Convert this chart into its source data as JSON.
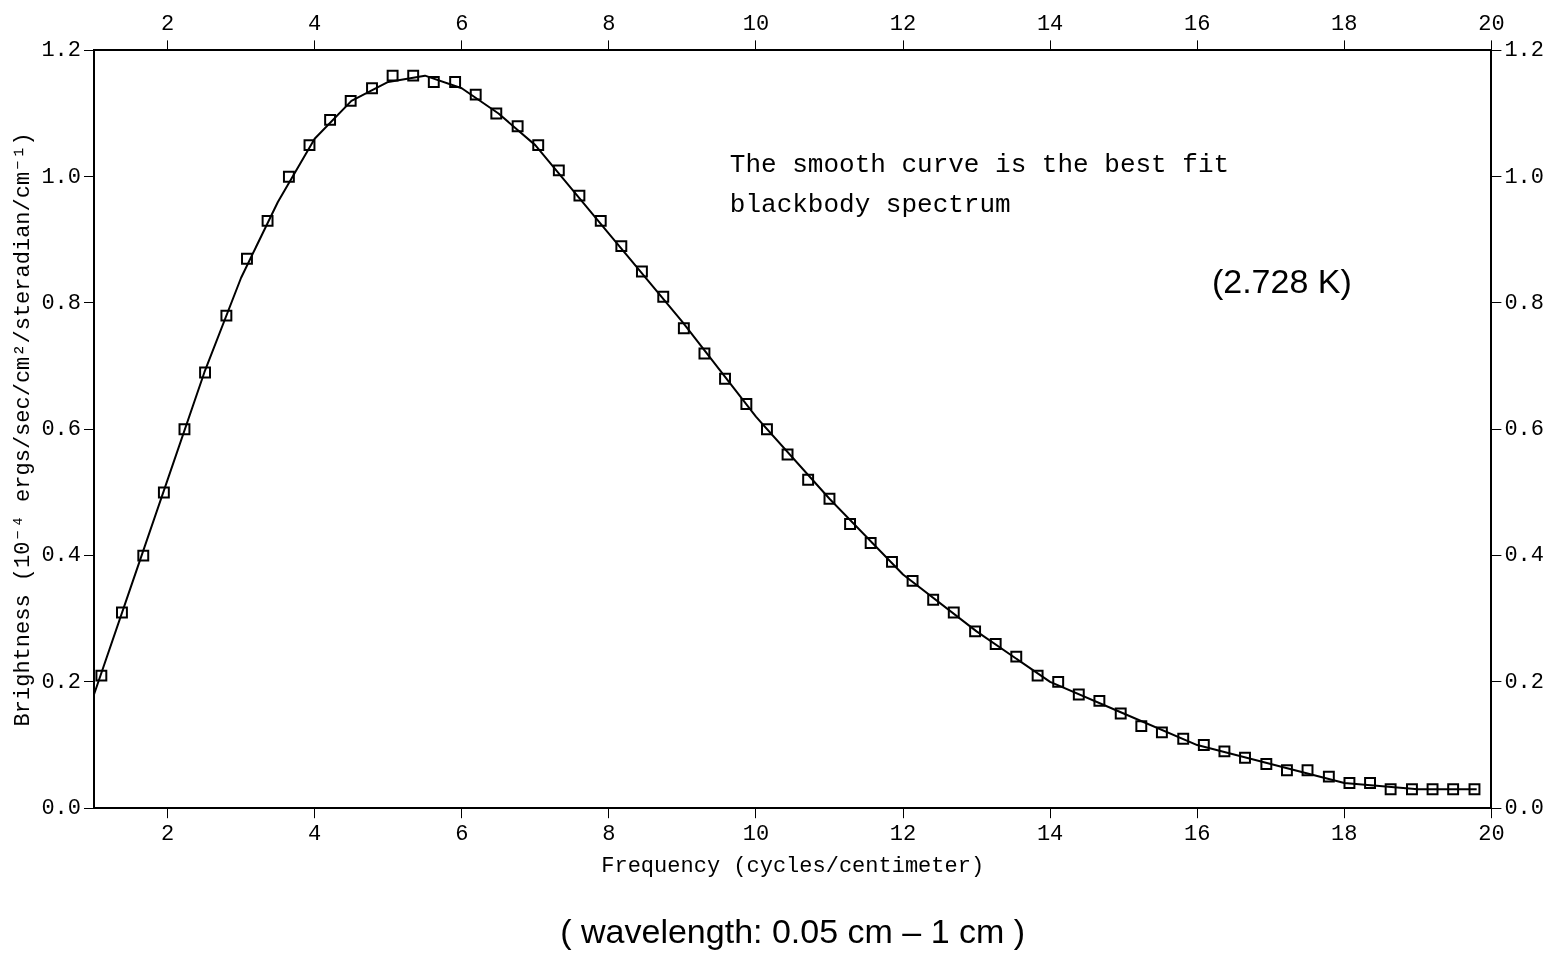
{
  "chart_data": {
    "type": "scatter",
    "xlabel": "Frequency (cycles/centimeter)",
    "ylabel": "Brightness (10⁻⁴ ergs/sec/cm²/steradian/cm⁻¹)",
    "annotations": [
      "The smooth curve is the best fit\nblackbody spectrum",
      "(2.728 K)",
      "( wavelength: 0.05 cm – 1 cm )"
    ],
    "marker": "square",
    "grid": false,
    "legend": false,
    "xlim": [
      1,
      20
    ],
    "xticks": [
      2,
      4,
      6,
      8,
      10,
      12,
      14,
      16,
      18,
      20
    ],
    "x2lim": [
      1,
      20
    ],
    "x2ticks": [
      2,
      4,
      6,
      8,
      10,
      12,
      14,
      16,
      18,
      20
    ],
    "ylim": [
      0,
      1.2
    ],
    "yticks": [
      {
        "value": 0,
        "label": "0.0"
      },
      {
        "value": 0.2,
        "label": "0.2"
      },
      {
        "value": 0.4,
        "label": "0.4"
      },
      {
        "value": 0.6,
        "label": "0.6"
      },
      {
        "value": 0.8,
        "label": "0.8"
      },
      {
        "value": 1,
        "label": "1.0"
      },
      {
        "value": 1.2,
        "label": "1.2"
      }
    ],
    "y2lim": [
      0,
      1.2
    ],
    "y2ticks": [
      {
        "value": 0,
        "label": "0.0"
      },
      {
        "value": 0.2,
        "label": "0.2"
      },
      {
        "value": 0.4,
        "label": "0.4"
      },
      {
        "value": 0.6,
        "label": "0.6"
      },
      {
        "value": 0.8,
        "label": "0.8"
      },
      {
        "value": 1,
        "label": "1.0"
      },
      {
        "value": 1.2,
        "label": "1.2"
      }
    ],
    "series": [
      {
        "type": "scatter",
        "color": "#000000",
        "x": [
          1.1,
          1.38,
          1.67,
          1.95,
          2.23,
          2.51,
          2.8,
          3.08,
          3.36,
          3.65,
          3.93,
          4.21,
          4.49,
          4.78,
          5.06,
          5.34,
          5.62,
          5.91,
          6.19,
          6.47,
          6.76,
          7.04,
          7.32,
          7.6,
          7.89,
          8.17,
          8.45,
          8.74,
          9.02,
          9.3,
          9.58,
          9.87,
          10.15,
          10.43,
          10.71,
          11.0,
          11.28,
          11.56,
          11.85,
          12.13,
          12.41,
          12.69,
          12.98,
          13.26,
          13.54,
          13.83,
          14.11,
          14.39,
          14.67,
          14.96,
          15.24,
          15.52,
          15.81,
          16.09,
          16.37,
          16.65,
          16.94,
          17.22,
          17.5,
          17.79,
          18.07,
          18.35,
          18.63,
          18.92,
          19.2,
          19.48,
          19.77
        ],
        "values": [
          0.21,
          0.31,
          0.4,
          0.5,
          0.6,
          0.69,
          0.78,
          0.87,
          0.93,
          1.0,
          1.05,
          1.09,
          1.12,
          1.14,
          1.16,
          1.16,
          1.15,
          1.15,
          1.13,
          1.1,
          1.08,
          1.05,
          1.01,
          0.97,
          0.93,
          0.89,
          0.85,
          0.81,
          0.76,
          0.72,
          0.68,
          0.64,
          0.6,
          0.56,
          0.52,
          0.49,
          0.45,
          0.42,
          0.39,
          0.36,
          0.33,
          0.31,
          0.28,
          0.26,
          0.24,
          0.21,
          0.2,
          0.18,
          0.17,
          0.15,
          0.13,
          0.12,
          0.11,
          0.1,
          0.09,
          0.08,
          0.07,
          0.06,
          0.06,
          0.05,
          0.04,
          0.04,
          0.03,
          0.03,
          0.03,
          0.03,
          0.03
        ]
      },
      {
        "type": "line",
        "color": "#000000",
        "marker": "none",
        "line_style": "solid",
        "x": [
          1,
          1.5,
          2,
          2.5,
          3,
          3.5,
          4,
          4.5,
          5,
          5.5,
          6,
          6.5,
          7,
          7.5,
          8,
          9,
          10,
          11,
          12,
          13,
          14,
          15,
          16,
          17,
          18,
          19,
          19.8
        ],
        "values": [
          0.18,
          0.35,
          0.52,
          0.69,
          0.84,
          0.96,
          1.06,
          1.12,
          1.15,
          1.16,
          1.14,
          1.1,
          1.05,
          0.98,
          0.91,
          0.77,
          0.62,
          0.49,
          0.37,
          0.28,
          0.2,
          0.15,
          0.1,
          0.07,
          0.04,
          0.03,
          0.03
        ]
      }
    ]
  }
}
